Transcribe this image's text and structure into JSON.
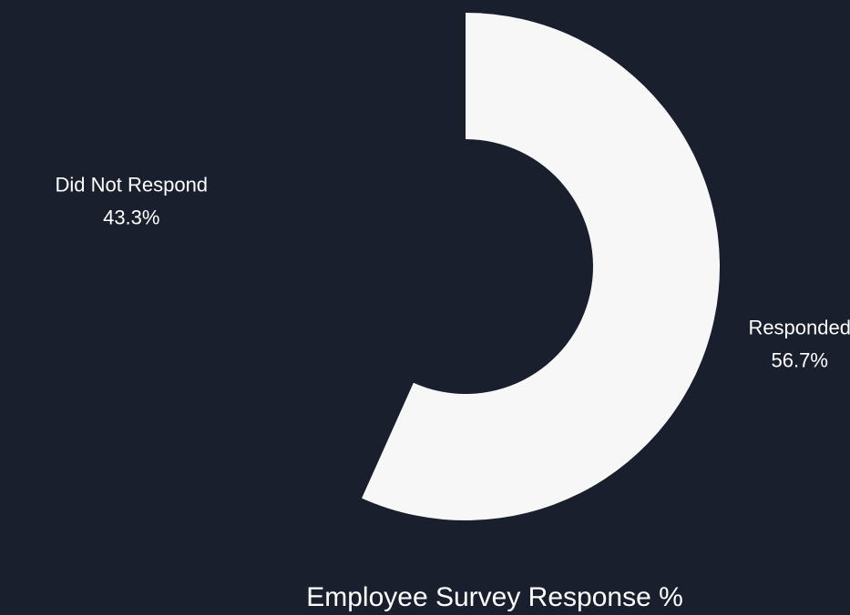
{
  "chart_data": {
    "type": "pie",
    "variant": "donut",
    "title": "Employee Survey Response %",
    "slices": [
      {
        "label": "Responded",
        "value": 56.7,
        "display": "56.7%",
        "color": "#f7f7f7"
      },
      {
        "label": "Did Not Respond",
        "value": 43.3,
        "display": "43.3%",
        "color": "#1a1f2e"
      }
    ],
    "start_angle": "top",
    "direction": "clockwise",
    "background": "#1a1f2e",
    "text_color": "#ffffff"
  }
}
